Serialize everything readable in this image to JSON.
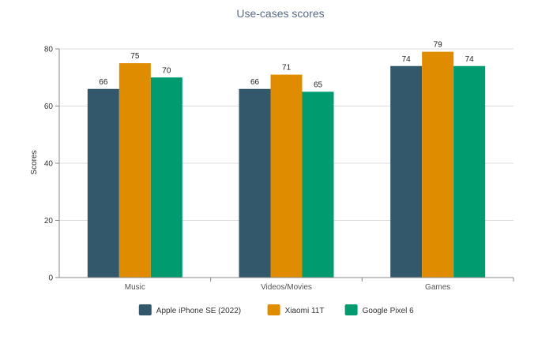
{
  "chart_data": {
    "type": "bar",
    "title": "Use-cases scores",
    "xlabel": "",
    "ylabel": "Scores",
    "categories": [
      "Music",
      "Videos/Movies",
      "Games"
    ],
    "series": [
      {
        "name": "Apple iPhone SE (2022)",
        "color": "#34586b",
        "values": [
          66,
          66,
          74
        ]
      },
      {
        "name": "Xiaomi 11T",
        "color": "#e08c00",
        "values": [
          75,
          71,
          79
        ]
      },
      {
        "name": "Google Pixel 6",
        "color": "#009c6f",
        "values": [
          70,
          65,
          74
        ]
      }
    ],
    "ylim": [
      0,
      80
    ],
    "yticks": [
      0,
      20,
      40,
      60,
      80
    ],
    "grid": true,
    "legend_position": "bottom"
  }
}
